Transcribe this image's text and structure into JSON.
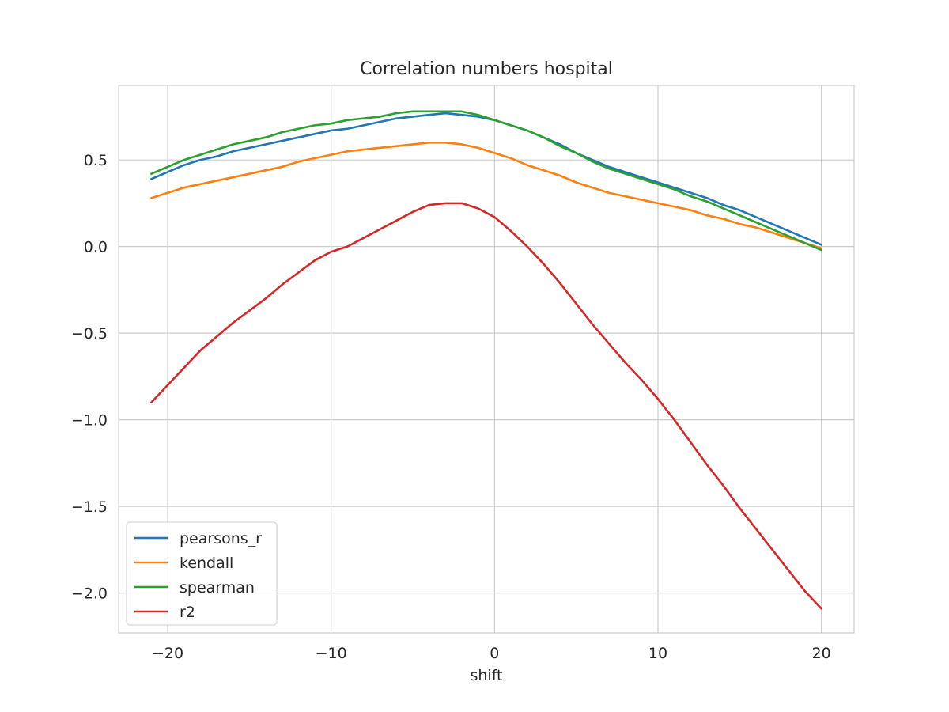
{
  "chart_data": {
    "type": "line",
    "title": "Correlation numbers hospital",
    "xlabel": "shift",
    "ylabel": "",
    "xlim": [
      -23,
      22
    ],
    "ylim": [
      -2.23,
      0.93
    ],
    "xticks": [
      -20,
      -10,
      0,
      10,
      20
    ],
    "xtick_labels": [
      "−20",
      "−10",
      "0",
      "10",
      "20"
    ],
    "yticks": [
      -2.0,
      -1.5,
      -1.0,
      -0.5,
      0.0,
      0.5
    ],
    "ytick_labels": [
      "−2.0",
      "−1.5",
      "−1.0",
      "−0.5",
      "0.0",
      "0.5"
    ],
    "grid": true,
    "legend_position": "lower-left",
    "x": [
      -21,
      -20,
      -19,
      -18,
      -17,
      -16,
      -15,
      -14,
      -13,
      -12,
      -11,
      -10,
      -9,
      -8,
      -7,
      -6,
      -5,
      -4,
      -3,
      -2,
      -1,
      0,
      1,
      2,
      3,
      4,
      5,
      6,
      7,
      8,
      9,
      10,
      11,
      12,
      13,
      14,
      15,
      16,
      17,
      18,
      19,
      20
    ],
    "series": [
      {
        "name": "pearsons_r",
        "color": "#1f77b4",
        "values": [
          0.39,
          0.43,
          0.47,
          0.5,
          0.52,
          0.55,
          0.57,
          0.59,
          0.61,
          0.63,
          0.65,
          0.67,
          0.68,
          0.7,
          0.72,
          0.74,
          0.75,
          0.76,
          0.77,
          0.76,
          0.75,
          0.73,
          0.7,
          0.67,
          0.63,
          0.59,
          0.54,
          0.5,
          0.46,
          0.43,
          0.4,
          0.37,
          0.34,
          0.31,
          0.28,
          0.24,
          0.21,
          0.17,
          0.13,
          0.09,
          0.05,
          0.01
        ]
      },
      {
        "name": "kendall",
        "color": "#ff7f0e",
        "values": [
          0.28,
          0.31,
          0.34,
          0.36,
          0.38,
          0.4,
          0.42,
          0.44,
          0.46,
          0.49,
          0.51,
          0.53,
          0.55,
          0.56,
          0.57,
          0.58,
          0.59,
          0.6,
          0.6,
          0.59,
          0.57,
          0.54,
          0.51,
          0.47,
          0.44,
          0.41,
          0.37,
          0.34,
          0.31,
          0.29,
          0.27,
          0.25,
          0.23,
          0.21,
          0.18,
          0.16,
          0.13,
          0.11,
          0.08,
          0.05,
          0.02,
          -0.01
        ]
      },
      {
        "name": "spearman",
        "color": "#2ca02c",
        "values": [
          0.42,
          0.46,
          0.5,
          0.53,
          0.56,
          0.59,
          0.61,
          0.63,
          0.66,
          0.68,
          0.7,
          0.71,
          0.73,
          0.74,
          0.75,
          0.77,
          0.78,
          0.78,
          0.78,
          0.78,
          0.76,
          0.73,
          0.7,
          0.67,
          0.63,
          0.58,
          0.54,
          0.49,
          0.45,
          0.42,
          0.39,
          0.36,
          0.33,
          0.29,
          0.26,
          0.22,
          0.18,
          0.14,
          0.1,
          0.06,
          0.02,
          -0.02
        ]
      },
      {
        "name": "r2",
        "color": "#d62728",
        "values": [
          -0.9,
          -0.8,
          -0.7,
          -0.6,
          -0.52,
          -0.44,
          -0.37,
          -0.3,
          -0.22,
          -0.15,
          -0.08,
          -0.03,
          0.0,
          0.05,
          0.1,
          0.15,
          0.2,
          0.24,
          0.25,
          0.25,
          0.22,
          0.17,
          0.09,
          0.0,
          -0.1,
          -0.21,
          -0.33,
          -0.45,
          -0.56,
          -0.67,
          -0.77,
          -0.88,
          -1.0,
          -1.13,
          -1.26,
          -1.38,
          -1.51,
          -1.63,
          -1.75,
          -1.87,
          -1.99,
          -2.09
        ]
      }
    ]
  }
}
